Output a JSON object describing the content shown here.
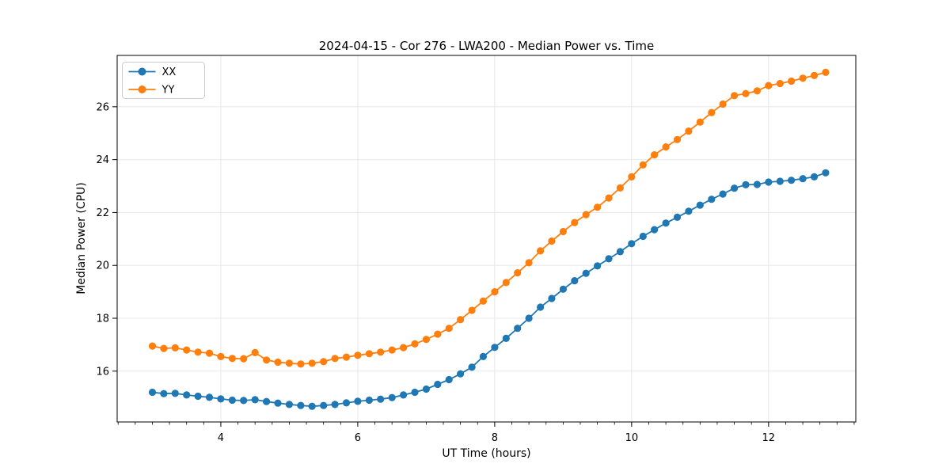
{
  "figure": {
    "title": "2024-04-15 - Cor 276 - LWA200 - Median Power vs. Time",
    "xlabel": "UT Time (hours)",
    "ylabel": "Median Power (CPU)"
  },
  "chart_data": {
    "type": "line",
    "title": "2024-04-15 - Cor 276 - LWA200 - Median Power vs. Time",
    "xlabel": "UT Time (hours)",
    "ylabel": "Median Power (CPU)",
    "grid": true,
    "legend_position": "upper-left",
    "marker": "circle",
    "background": "#ffffff",
    "grid_color": "#e5e5e5",
    "spine_color": "#000000",
    "xlim": [
      2.486,
      13.274
    ],
    "ylim": [
      14.078,
      27.942
    ],
    "x_major_ticks": [
      4,
      6,
      8,
      10,
      12
    ],
    "x_major_tick_labels": [
      "4",
      "6",
      "8",
      "10",
      "12"
    ],
    "x_minor_tick_step": 0.25,
    "y_major_ticks": [
      16,
      18,
      20,
      22,
      24,
      26
    ],
    "y_major_tick_labels": [
      "16",
      "18",
      "20",
      "22",
      "24",
      "26"
    ],
    "x": [
      3.0,
      3.167,
      3.333,
      3.5,
      3.667,
      3.833,
      4.0,
      4.167,
      4.333,
      4.5,
      4.667,
      4.833,
      5.0,
      5.167,
      5.333,
      5.5,
      5.667,
      5.833,
      6.0,
      6.167,
      6.333,
      6.5,
      6.667,
      6.833,
      7.0,
      7.167,
      7.333,
      7.5,
      7.667,
      7.833,
      8.0,
      8.167,
      8.333,
      8.5,
      8.667,
      8.833,
      9.0,
      9.167,
      9.333,
      9.5,
      9.667,
      9.833,
      10.0,
      10.167,
      10.333,
      10.5,
      10.667,
      10.833,
      11.0,
      11.167,
      11.333,
      11.5,
      11.667,
      11.833,
      12.0,
      12.167,
      12.333,
      12.5,
      12.667,
      12.833
    ],
    "series": [
      {
        "name": "XX",
        "color": "#1f77b4",
        "values": [
          15.2,
          15.15,
          15.16,
          15.1,
          15.05,
          15.01,
          14.95,
          14.9,
          14.89,
          14.92,
          14.85,
          14.79,
          14.74,
          14.7,
          14.67,
          14.7,
          14.74,
          14.8,
          14.86,
          14.9,
          14.94,
          15.0,
          15.1,
          15.2,
          15.32,
          15.5,
          15.68,
          15.9,
          16.15,
          16.55,
          16.9,
          17.24,
          17.62,
          18.0,
          18.42,
          18.75,
          19.1,
          19.42,
          19.7,
          19.98,
          20.25,
          20.52,
          20.82,
          21.1,
          21.35,
          21.6,
          21.82,
          22.05,
          22.28,
          22.5,
          22.7,
          22.92,
          23.05,
          23.06,
          23.15,
          23.18,
          23.22,
          23.28,
          23.35,
          23.5
        ]
      },
      {
        "name": "YY",
        "color": "#ff7f0e",
        "values": [
          16.95,
          16.86,
          16.88,
          16.8,
          16.72,
          16.68,
          16.55,
          16.48,
          16.47,
          16.7,
          16.42,
          16.34,
          16.3,
          16.27,
          16.3,
          16.36,
          16.48,
          16.53,
          16.6,
          16.66,
          16.72,
          16.8,
          16.89,
          17.03,
          17.2,
          17.4,
          17.62,
          17.95,
          18.3,
          18.65,
          19.0,
          19.35,
          19.72,
          20.1,
          20.55,
          20.92,
          21.28,
          21.62,
          21.92,
          22.2,
          22.55,
          22.93,
          23.35,
          23.8,
          24.18,
          24.48,
          24.76,
          25.08,
          25.42,
          25.78,
          26.1,
          26.42,
          26.5,
          26.6,
          26.8,
          26.88,
          26.97,
          27.08,
          27.18,
          27.3
        ]
      }
    ]
  }
}
